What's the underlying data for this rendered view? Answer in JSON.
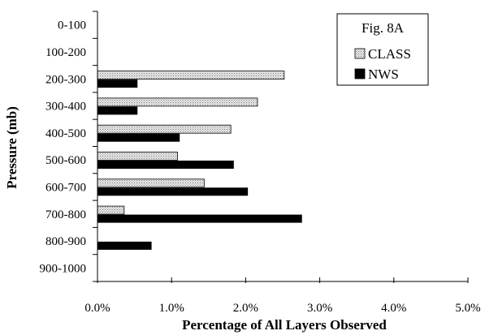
{
  "chart_data": {
    "type": "bar",
    "orientation": "horizontal",
    "categories": [
      "0-100",
      "100-200",
      "200-300",
      "300-400",
      "400-500",
      "500-600",
      "600-700",
      "700-800",
      "800-900",
      "900-1000"
    ],
    "series": [
      {
        "name": "CLASS",
        "color": "#d8d8d8",
        "pattern": "dotted",
        "values": [
          0,
          0,
          2.52,
          2.16,
          1.8,
          1.08,
          1.44,
          0.36,
          0,
          0
        ]
      },
      {
        "name": "NWS",
        "color": "#000000",
        "values": [
          0,
          0,
          0.54,
          0.54,
          1.11,
          1.84,
          2.03,
          2.76,
          0.73,
          0
        ]
      }
    ],
    "xlim": [
      0,
      5
    ],
    "xticks": [
      "0.0%",
      "1.0%",
      "2.0%",
      "3.0%",
      "4.0%",
      "5.0%"
    ],
    "xlabel": "Percentage of All Layers Observed",
    "ylabel": "Pressure (mb)",
    "legend": {
      "title": "Fig. 8A",
      "position": "top-right"
    },
    "grid": false
  }
}
